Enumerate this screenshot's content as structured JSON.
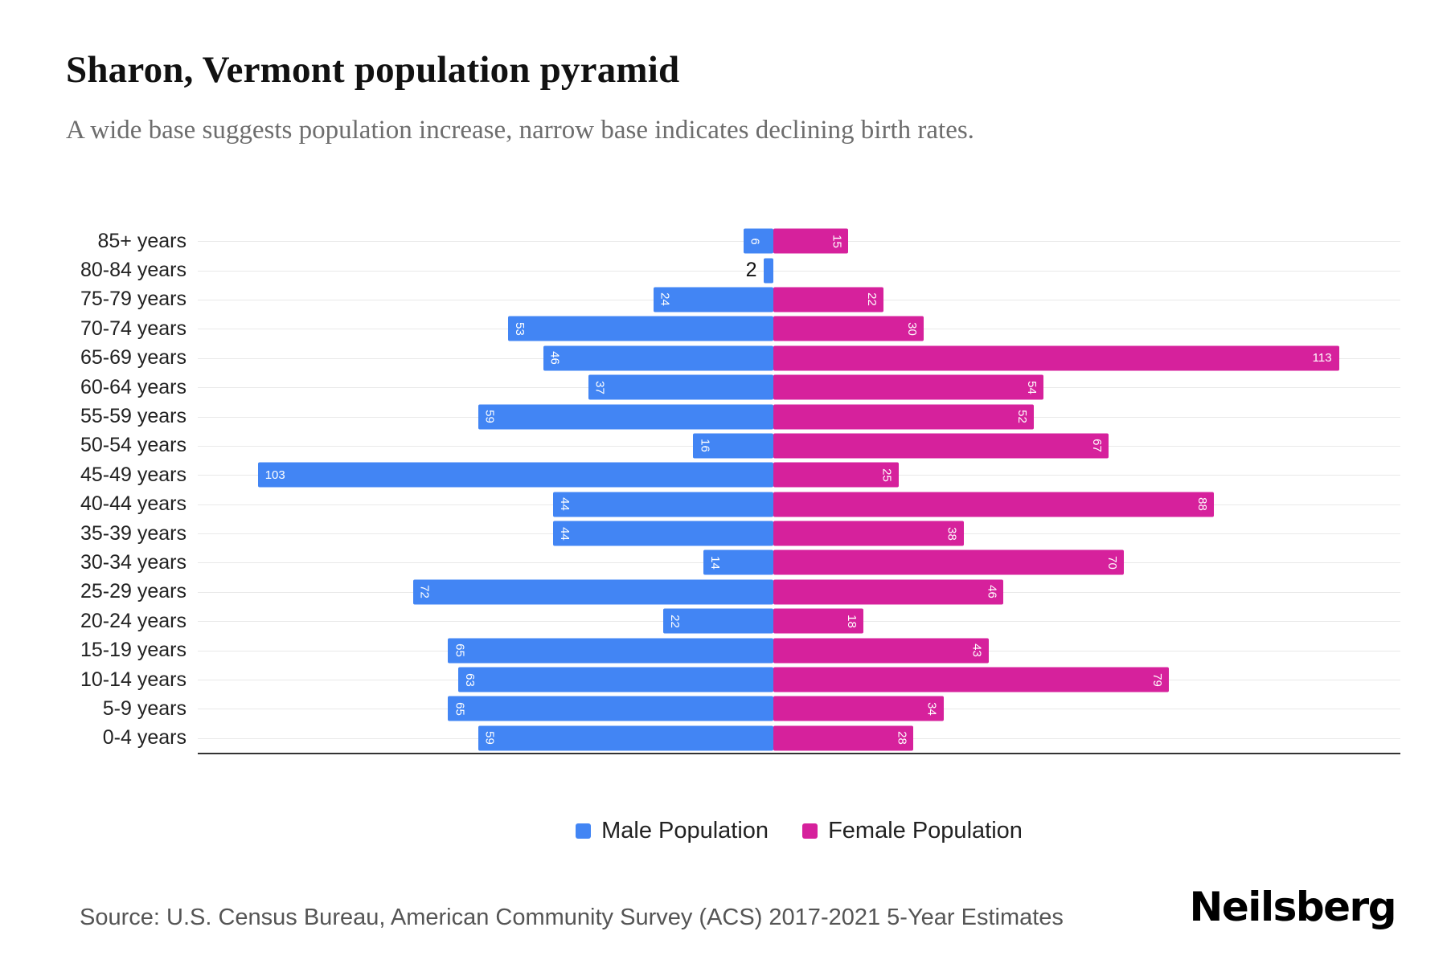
{
  "chart_data": {
    "type": "bar",
    "variant": "population-pyramid",
    "orientation": "horizontal",
    "title": "Sharon, Vermont population pyramid",
    "subtitle": "A wide base suggests population increase, narrow base indicates declining birth rates.",
    "categories": [
      "85+ years",
      "80-84 years",
      "75-79 years",
      "70-74 years",
      "65-69 years",
      "60-64 years",
      "55-59 years",
      "50-54 years",
      "45-49 years",
      "40-44 years",
      "35-39 years",
      "30-34 years",
      "25-29 years",
      "20-24 years",
      "15-19 years",
      "10-14 years",
      "5-9 years",
      "0-4 years"
    ],
    "series": [
      {
        "name": "Male Population",
        "values": [
          6,
          2,
          24,
          53,
          46,
          37,
          59,
          16,
          103,
          44,
          44,
          14,
          72,
          22,
          65,
          63,
          65,
          59
        ]
      },
      {
        "name": "Female Population",
        "values": [
          15,
          0,
          22,
          30,
          113,
          54,
          52,
          67,
          25,
          88,
          38,
          70,
          46,
          18,
          43,
          79,
          34,
          28
        ]
      }
    ],
    "xlim": [
      0,
      115
    ],
    "grid": "horizontal",
    "legend_position": "bottom"
  },
  "legend": {
    "male_label": "Male Population",
    "female_label": "Female Population"
  },
  "colors": {
    "male": "#4285f4",
    "female": "#d6219c",
    "axis": "#333333",
    "gridline": "#e9e9e9"
  },
  "source": "Source: U.S. Census Bureau, American Community Survey (ACS) 2017-2021 5-Year Estimates",
  "logo": "Neilsberg"
}
